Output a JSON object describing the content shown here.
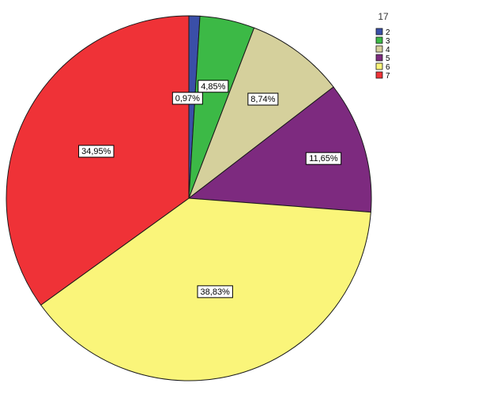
{
  "chart_data": {
    "type": "pie",
    "legend_title": "17",
    "legend_position": "top-right",
    "start": "12 o'clock",
    "direction": "clockwise",
    "slices": [
      {
        "label": "2",
        "value": 0.97,
        "display": "0,97%",
        "color": "#3a4fa8"
      },
      {
        "label": "3",
        "value": 4.85,
        "display": "4,85%",
        "color": "#3cb946"
      },
      {
        "label": "4",
        "value": 8.74,
        "display": "8,74%",
        "color": "#d5d09c"
      },
      {
        "label": "5",
        "value": 11.65,
        "display": "11,65%",
        "color": "#7d2a7f"
      },
      {
        "label": "6",
        "value": 38.83,
        "display": "38,83%",
        "color": "#faf57a"
      },
      {
        "label": "7",
        "value": 34.95,
        "display": "34,95%",
        "color": "#ef3237"
      }
    ]
  }
}
